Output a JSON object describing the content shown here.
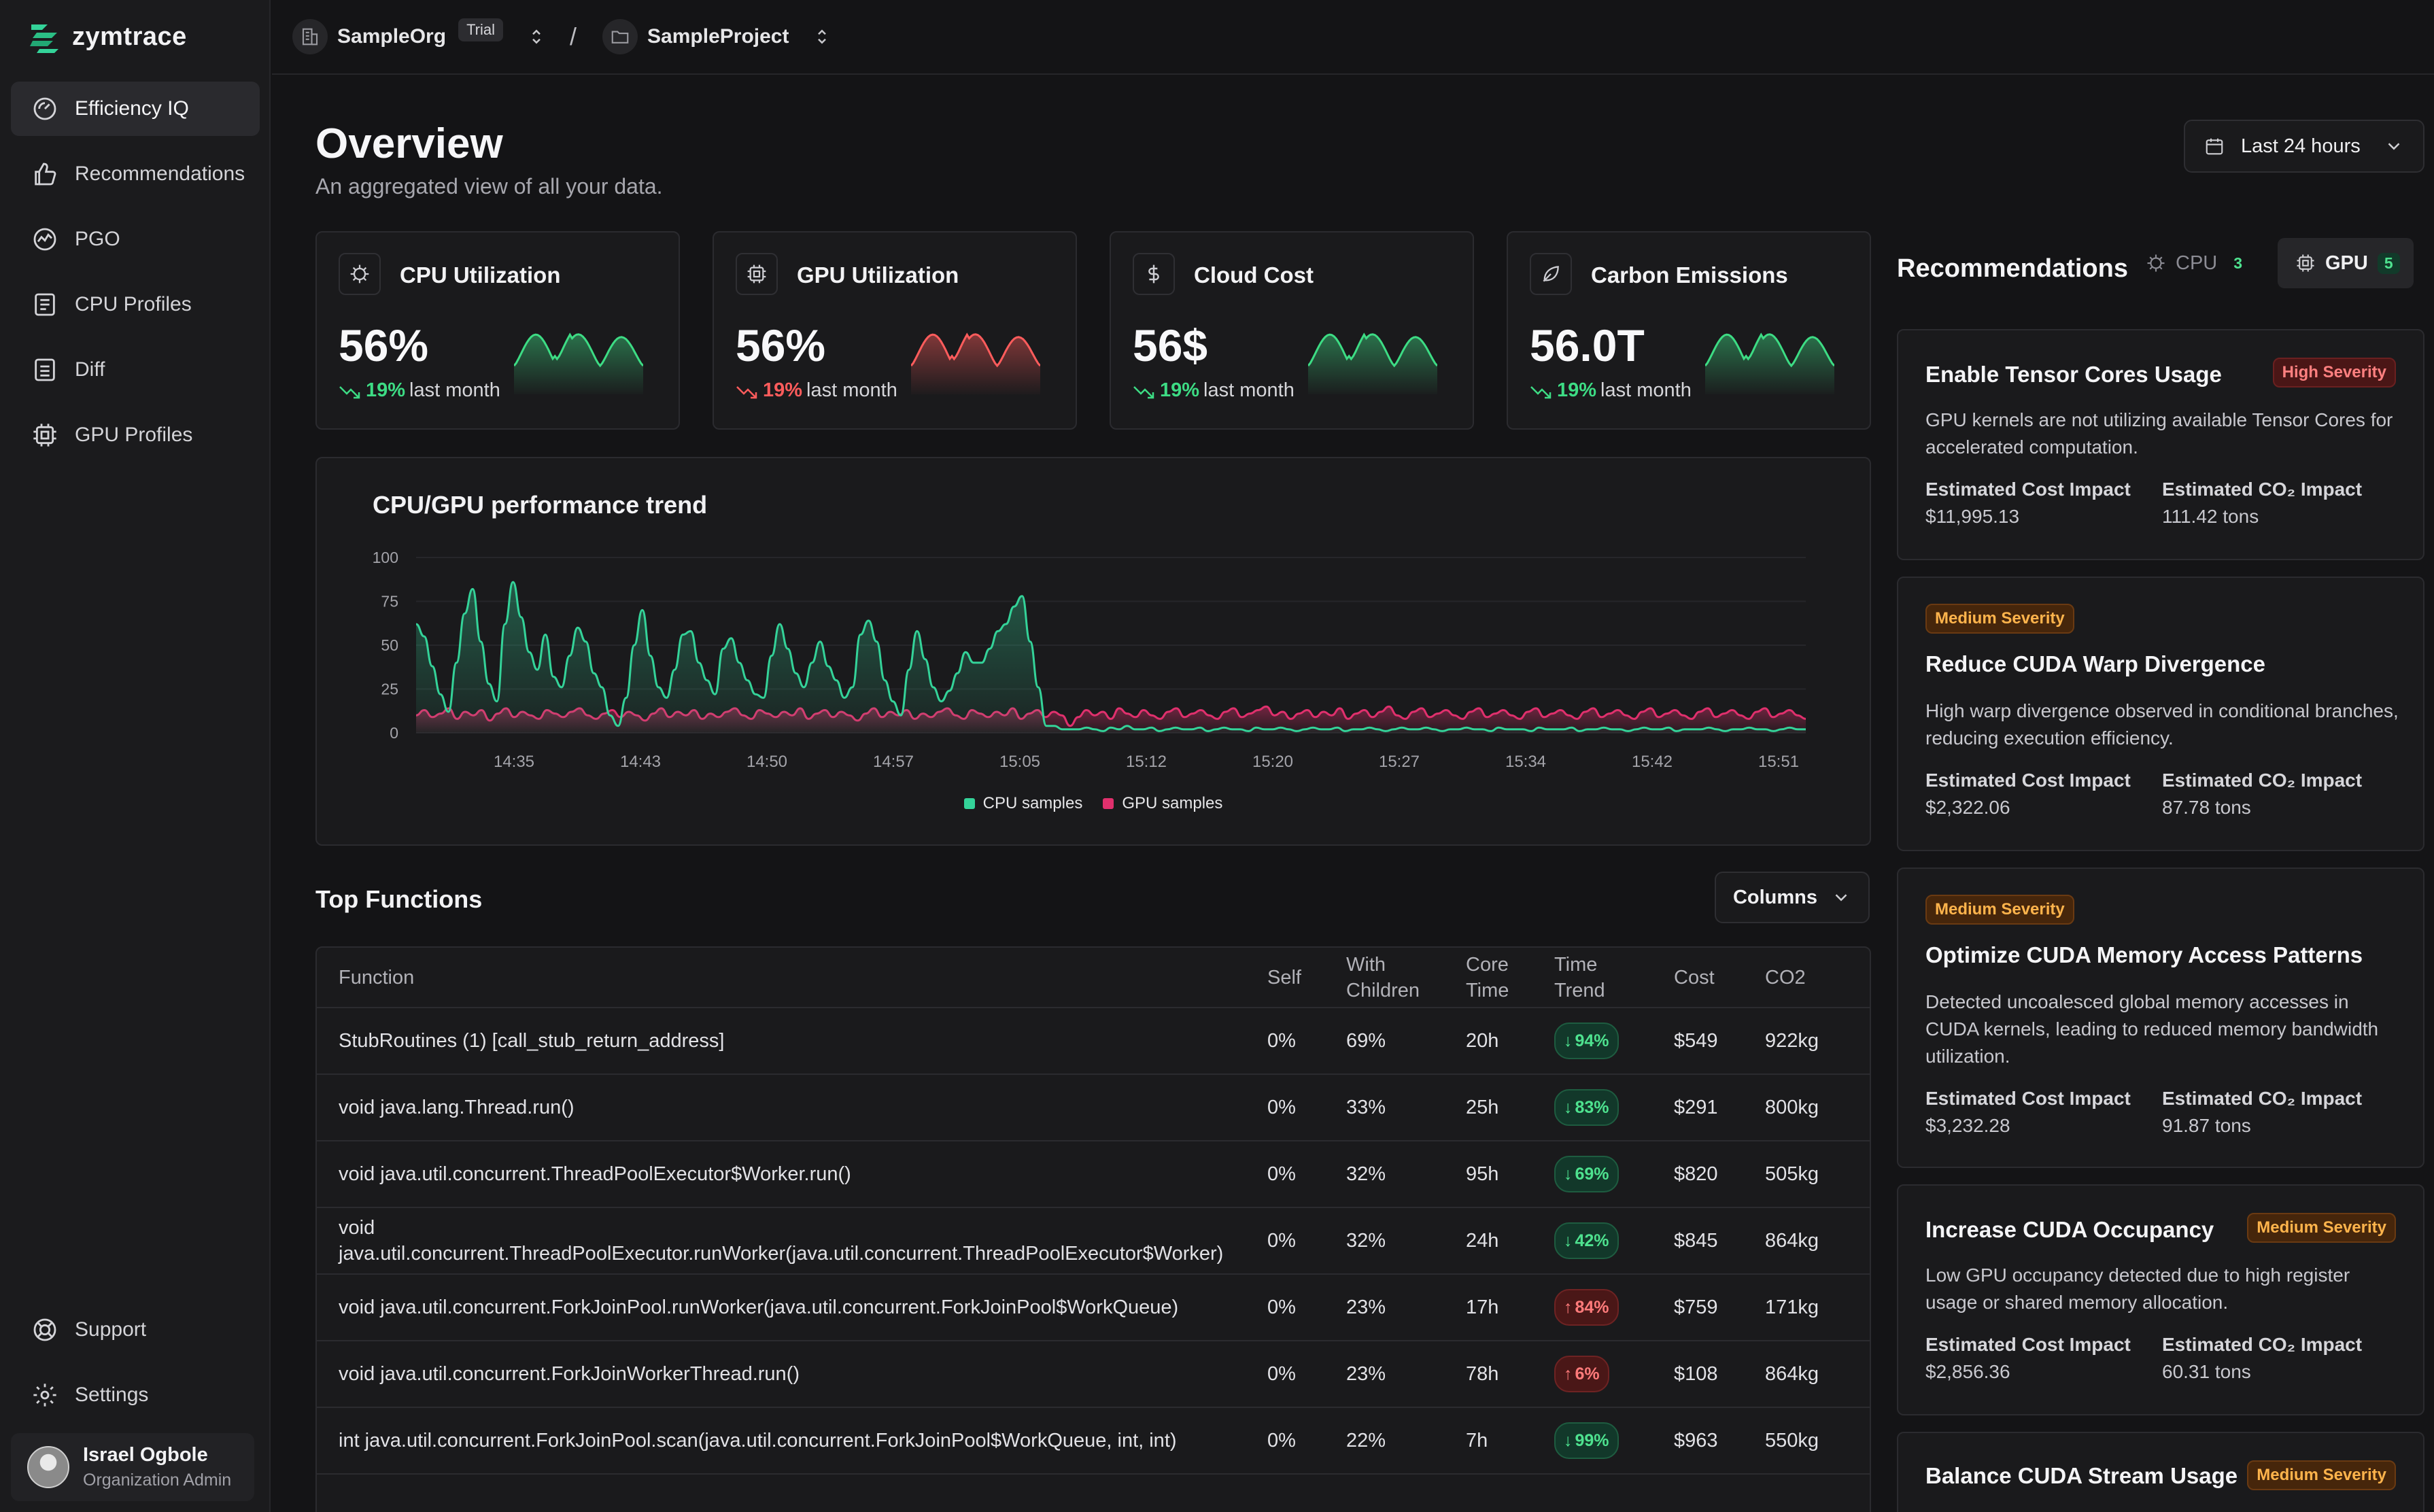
{
  "brand": {
    "name": "zymtrace"
  },
  "sidebar": {
    "items": [
      {
        "label": "Efficiency IQ",
        "icon": "gauge-icon"
      },
      {
        "label": "Recommendations",
        "icon": "thumbs-up-icon"
      },
      {
        "label": "PGO",
        "icon": "trend-icon"
      },
      {
        "label": "CPU Profiles",
        "icon": "cpu-profile-icon"
      },
      {
        "label": "Diff",
        "icon": "diff-icon"
      },
      {
        "label": "GPU Profiles",
        "icon": "gpu-icon"
      }
    ],
    "bottom": [
      {
        "label": "Support",
        "icon": "lifebuoy-icon"
      },
      {
        "label": "Settings",
        "icon": "gear-icon"
      }
    ],
    "user": {
      "name": "Israel Ogbole",
      "role": "Organization Admin"
    }
  },
  "topbar": {
    "org": "SampleOrg",
    "org_badge": "Trial",
    "separator": "/",
    "project": "SampleProject"
  },
  "header": {
    "title": "Overview",
    "subtitle": "An aggregated view of all your data.",
    "date_range": "Last 24 hours"
  },
  "stats": [
    {
      "title": "CPU Utilization",
      "value": "56%",
      "delta": "19%",
      "delta_label": "last month",
      "color": "#3ddc84"
    },
    {
      "title": "GPU Utilization",
      "value": "56%",
      "delta": "19%",
      "delta_label": "last month",
      "color": "#ff5c5c"
    },
    {
      "title": "Cloud Cost",
      "value": "56$",
      "delta": "19%",
      "delta_label": "last month",
      "color": "#3ddc84"
    },
    {
      "title": "Carbon Emissions",
      "value": "56.0T",
      "delta": "19%",
      "delta_label": "last month",
      "color": "#3ddc84"
    }
  ],
  "chart_data": {
    "type": "area",
    "title": "CPU/GPU performance trend",
    "ylim": [
      0,
      100
    ],
    "yticks": [
      "100",
      "75",
      "50",
      "25",
      "0"
    ],
    "xticks": [
      "14:35",
      "14:43",
      "14:50",
      "14:57",
      "15:05",
      "15:12",
      "15:20",
      "15:27",
      "15:34",
      "15:42",
      "15:51"
    ],
    "series": [
      {
        "name": "CPU samples",
        "color": "#34d399",
        "values": [
          62,
          55,
          38,
          22,
          12,
          40,
          68,
          82,
          52,
          28,
          18,
          62,
          86,
          66,
          46,
          36,
          56,
          32,
          26,
          44,
          60,
          52,
          34,
          26,
          10,
          4,
          20,
          50,
          70,
          44,
          26,
          20,
          36,
          56,
          58,
          40,
          30,
          22,
          48,
          54,
          40,
          30,
          22,
          20,
          44,
          62,
          48,
          34,
          26,
          40,
          52,
          38,
          30,
          20,
          26,
          56,
          64,
          52,
          30,
          18,
          10,
          36,
          58,
          42,
          26,
          18,
          24,
          34,
          46,
          40,
          40,
          48,
          58,
          62,
          72,
          78,
          52,
          26,
          4,
          4,
          2,
          2,
          2,
          3,
          2,
          1,
          3,
          2,
          4,
          2,
          2,
          3,
          1,
          2,
          3,
          2,
          2,
          3,
          1,
          2,
          3,
          2,
          2,
          1,
          3,
          2,
          2,
          3,
          2,
          1,
          2,
          3,
          2,
          2,
          3,
          1,
          2,
          2,
          3,
          2,
          1,
          2,
          3,
          2,
          2,
          3,
          2,
          1,
          2,
          2,
          3,
          2,
          2,
          1,
          3,
          2,
          2,
          2,
          1,
          3,
          2,
          2,
          2,
          3,
          1,
          2,
          2,
          3,
          2,
          2,
          1,
          2,
          3,
          2,
          2,
          3,
          1,
          2,
          2,
          2,
          3,
          2,
          1,
          2,
          2,
          3,
          2,
          2,
          1,
          2,
          3,
          2,
          2
        ]
      },
      {
        "name": "GPU samples",
        "color": "#e0306d",
        "values": [
          10,
          13,
          9,
          11,
          14,
          8,
          12,
          10,
          13,
          7,
          11,
          14,
          9,
          12,
          10,
          8,
          13,
          11,
          9,
          12,
          14,
          10,
          8,
          11,
          13,
          9,
          12,
          10,
          7,
          11,
          14,
          9,
          12,
          10,
          13,
          8,
          11,
          9,
          12,
          14,
          10,
          8,
          13,
          11,
          9,
          12,
          10,
          14,
          8,
          11,
          13,
          9,
          12,
          10,
          7,
          11,
          14,
          9,
          12,
          10,
          13,
          8,
          11,
          9,
          12,
          14,
          10,
          8,
          13,
          11,
          9,
          12,
          10,
          14,
          8,
          11,
          13,
          9,
          12,
          10,
          4,
          9,
          13,
          10,
          12,
          8,
          14,
          11,
          9,
          13,
          10,
          8,
          12,
          14,
          9,
          11,
          13,
          10,
          8,
          12,
          14,
          9,
          11,
          13,
          15,
          10,
          12,
          8,
          11,
          13,
          9,
          12,
          10,
          14,
          8,
          11,
          13,
          9,
          12,
          15,
          10,
          8,
          12,
          14,
          9,
          11,
          13,
          10,
          8,
          12,
          14,
          9,
          11,
          13,
          10,
          8,
          12,
          14,
          9,
          11,
          13,
          10,
          8,
          12,
          14,
          9,
          11,
          13,
          10,
          8,
          12,
          14,
          9,
          11,
          13,
          10,
          8,
          12,
          14,
          9,
          11,
          13,
          10,
          8,
          12,
          14,
          9,
          11,
          13,
          10,
          8
        ]
      }
    ]
  },
  "top_functions": {
    "title": "Top Functions",
    "columns_button": "Columns",
    "headers": [
      "Function",
      "Self",
      "With Children",
      "Core Time",
      "Time Trend",
      "Cost",
      "CO2"
    ],
    "rows": [
      {
        "fn": "StubRoutines (1) [call_stub_return_address]",
        "self": "0%",
        "children": "69%",
        "core": "20h",
        "trend": "94%",
        "dir": "down",
        "cost": "$549",
        "co2": "922kg"
      },
      {
        "fn": "void java.lang.Thread.run()",
        "self": "0%",
        "children": "33%",
        "core": "25h",
        "trend": "83%",
        "dir": "down",
        "cost": "$291",
        "co2": "800kg"
      },
      {
        "fn": "void java.util.concurrent.ThreadPoolExecutor$Worker.run()",
        "self": "0%",
        "children": "32%",
        "core": "95h",
        "trend": "69%",
        "dir": "down",
        "cost": "$820",
        "co2": "505kg"
      },
      {
        "fn": "void java.util.concurrent.ThreadPoolExecutor.runWorker(java.util.concurrent.ThreadPoolExecutor$Worker)",
        "self": "0%",
        "children": "32%",
        "core": "24h",
        "trend": "42%",
        "dir": "down",
        "cost": "$845",
        "co2": "864kg"
      },
      {
        "fn": "void java.util.concurrent.ForkJoinPool.runWorker(java.util.concurrent.ForkJoinPool$WorkQueue)",
        "self": "0%",
        "children": "23%",
        "core": "17h",
        "trend": "84%",
        "dir": "up",
        "cost": "$759",
        "co2": "171kg"
      },
      {
        "fn": "void java.util.concurrent.ForkJoinWorkerThread.run()",
        "self": "0%",
        "children": "23%",
        "core": "78h",
        "trend": "6%",
        "dir": "up",
        "cost": "$108",
        "co2": "864kg"
      },
      {
        "fn": "int java.util.concurrent.ForkJoinPool.scan(java.util.concurrent.ForkJoinPool$WorkQueue, int, int)",
        "self": "0%",
        "children": "22%",
        "core": "7h",
        "trend": "99%",
        "dir": "down",
        "cost": "$963",
        "co2": "550kg"
      }
    ]
  },
  "recommendations": {
    "title": "Recommendations",
    "tabs": [
      {
        "label": "CPU",
        "count": "3"
      },
      {
        "label": "GPU",
        "count": "5"
      }
    ],
    "cost_label": "Estimated Cost Impact",
    "co2_label": "Estimated CO₂ Impact",
    "cards": [
      {
        "name": "Enable Tensor Cores Usage",
        "severity": "High Severity",
        "level": "high",
        "desc": "GPU kernels are not utilizing available Tensor Cores for accelerated computation.",
        "cost": "$11,995.13",
        "co2": "111.42 tons"
      },
      {
        "name": "Reduce CUDA Warp Divergence",
        "severity": "Medium Severity",
        "level": "med",
        "desc": "High warp divergence observed in conditional branches, reducing execution efficiency.",
        "cost": "$2,322.06",
        "co2": "87.78 tons"
      },
      {
        "name": "Optimize CUDA Memory Access Patterns",
        "severity": "Medium Severity",
        "level": "med",
        "desc": "Detected uncoalesced global memory accesses in CUDA kernels, leading to reduced memory bandwidth utilization.",
        "cost": "$3,232.28",
        "co2": "91.87 tons"
      },
      {
        "name": "Increase CUDA Occupancy",
        "severity": "Medium Severity",
        "level": "med",
        "desc": "Low GPU occupancy detected due to high register usage or shared memory allocation.",
        "cost": "$2,856.36",
        "co2": "60.31 tons"
      },
      {
        "name": "Balance CUDA Stream Usage",
        "severity": "Medium Severity",
        "level": "med",
        "desc": "",
        "cost": "",
        "co2": ""
      }
    ]
  }
}
